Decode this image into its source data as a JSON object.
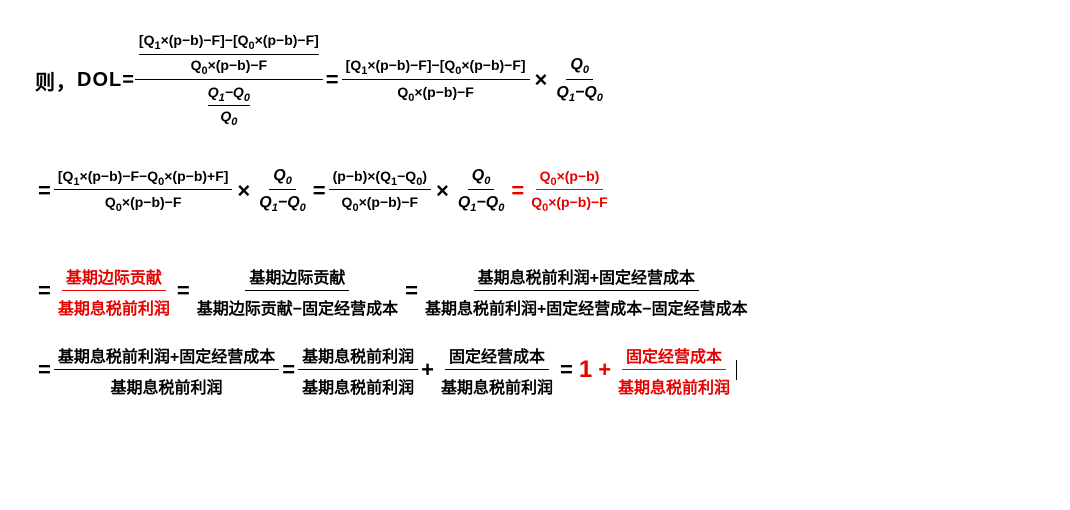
{
  "colors": {
    "text": "#000000",
    "highlight": "#e60000",
    "bg": "#ffffff"
  },
  "font": {
    "family": "Microsoft YaHei",
    "weight": "bold"
  },
  "line1": {
    "prefix": "则，",
    "dol": "DOL=",
    "complex_top_num": "[Q₁×(p−b)−F]−[Q₀×(p−b)−F]",
    "complex_top_den": "Q₀×(p−b)−F",
    "complex_bot_num": "Q₁−Q₀",
    "complex_bot_den": "Q₀",
    "rhs_num": "[Q₁×(p−b)−F]−[Q₀×(p−b)−F]",
    "rhs_den": "Q₀×(p−b)−F",
    "q_num": "Q₀",
    "q_den": "Q₁−Q₀"
  },
  "line2": {
    "f1_num": "[Q₁×(p−b)−F−Q₀×(p−b)+F]",
    "f1_den": "Q₀×(p−b)−F",
    "q_num": "Q₀",
    "q_den": "Q₁−Q₀",
    "f2_num": "(p−b)×(Q₁−Q₀)",
    "f2_den": "Q₀×(p−b)−F",
    "final_num": "Q₀×(p−b)",
    "final_den": "Q₀×(p−b)−F"
  },
  "line3": {
    "f1_num": "基期边际贡献",
    "f1_den": "基期息税前利润",
    "f2_num": "基期边际贡献",
    "f2_den": "基期边际贡献−固定经营成本",
    "f3_num": "基期息税前利润+固定经营成本",
    "f3_den": "基期息税前利润+固定经营成本−固定经营成本"
  },
  "line4": {
    "f1_num": "基期息税前利润+固定经营成本",
    "f1_den": "基期息税前利润",
    "f2_num": "基期息税前利润",
    "f2_den": "基期息税前利润",
    "f3_num": "固定经营成本",
    "f3_den": "基期息税前利润",
    "one": "1",
    "plus": " + ",
    "f4_num": "固定经营成本",
    "f4_den": "基期息税前利润"
  }
}
